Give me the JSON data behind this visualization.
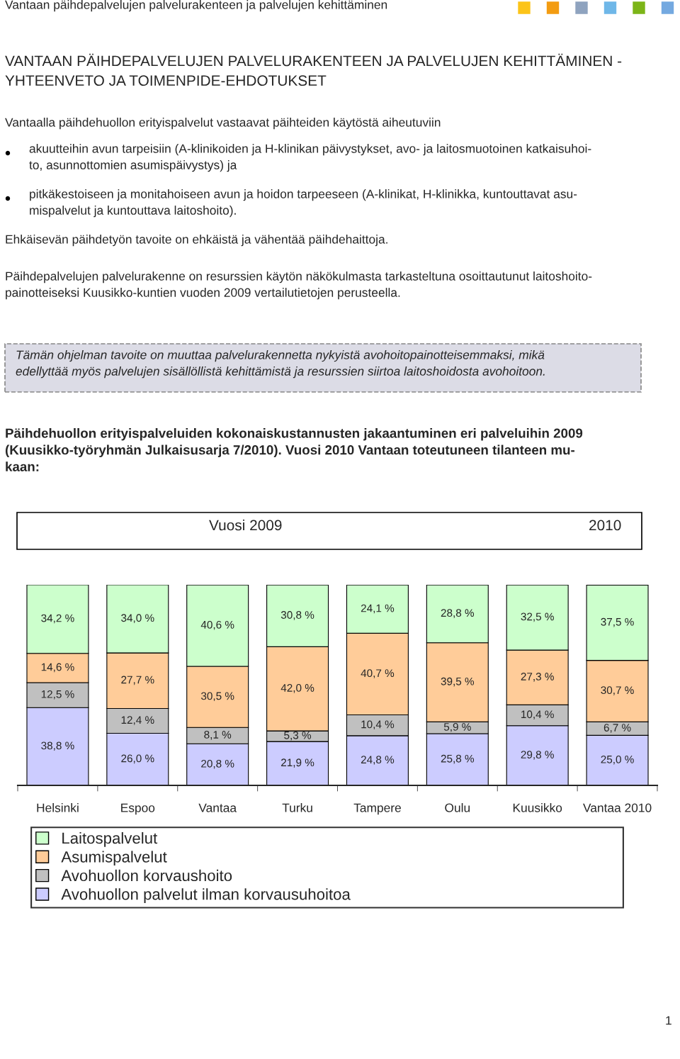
{
  "chart_data": {
    "type": "bar",
    "stacked": true,
    "title": "Päihdehuollon erityispalveluiden kokonaiskustannusten jakaantuminen eri palveluihin 2009\n(Kuusikko-työryhmän Julkaisusarja 7/2010). Vuosi 2010 Vantaan toteutuneen tilanteen mu-\nkaan:",
    "categories": [
      "Helsinki",
      "Espoo",
      "Vantaa",
      "Turku",
      "Tampere",
      "Oulu",
      "Kuusikko",
      "Vantaa 2010"
    ],
    "series": [
      {
        "name": "Avohuollon palvelut ilman korvausuhoitoa",
        "color": "#ccccff",
        "values": [
          38.8,
          26.0,
          20.8,
          21.9,
          24.8,
          25.8,
          29.8,
          25.0
        ],
        "value_labels": [
          "38,8 %",
          "26,0 %",
          "20,8 %",
          "21,9 %",
          "24,8 %",
          "25,8 %",
          "29,8 %",
          "25,0 %"
        ]
      },
      {
        "name": "Avohuollon korvaushoito",
        "color": "#c0c0c0",
        "values": [
          12.5,
          12.4,
          8.1,
          5.3,
          10.4,
          5.9,
          10.4,
          6.7
        ],
        "value_labels": [
          "12,5 %",
          "12,4 %",
          "8,1 %",
          "5,3 %",
          "10,4 %",
          "5,9 %",
          "10,4 %",
          "6,7 %"
        ]
      },
      {
        "name": "Asumispalvelut",
        "color": "#ffcc99",
        "values": [
          14.6,
          27.7,
          30.5,
          42.0,
          40.7,
          39.5,
          27.3,
          30.7
        ],
        "value_labels": [
          "14,6 %",
          "27,7 %",
          "30,5 %",
          "42,0 %",
          "40,7 %",
          "39,5 %",
          "27,3 %",
          "30,7 %"
        ]
      },
      {
        "name": "Laitospalvelut",
        "color": "#ccffcc",
        "values": [
          34.2,
          34.0,
          40.6,
          30.8,
          24.1,
          28.8,
          32.5,
          37.5
        ],
        "value_labels": [
          "34,2 %",
          "34,0 %",
          "40,6 %",
          "30,8 %",
          "24,1 %",
          "28,8 %",
          "32,5 %",
          "37,5 %"
        ]
      }
    ],
    "legend": "bottom",
    "annotations": [
      "Vantaan päihdepalvelujen palvelurakenteen ja palvelujen kehittäminen",
      "VANTAAN PÄIHDEPALVELUJEN PALVELURAKENTEEN JA PALVELUJEN KEHITTÄMINEN -\nYHTEENVETO JA TOIMENPIDE-EHDOTUKSET",
      "Vantaalla päihdehuollon erityispalvelut vastaavat päihteiden käytöstä aiheutuviin",
      "akuutteihin avun tarpeisiin (A-klinikoiden ja H-klinikan päivystykset, avo- ja laitosmuotoinen katkaisuhoi-\nto, asunnottomien asumispäivystys) ja",
      "pitkäkestoiseen ja monitahoiseen avun ja hoidon tarpeeseen (A-klinikat, H-klinikka, kuntouttavat asu-\nmispalvelut ja kuntouttava laitoshoito).",
      "Ehkäisevän päihdetyön tavoite on ehkäistä ja vähentää päihdehaittoja.",
      "Päihdepalvelujen palvelurakenne on resurssien käytön näkökulmasta tarkasteltuna osoittautunut laitoshoito-\npainotteiseksi Kuusikko-kuntien vuoden 2009 vertailutietojen perusteella.",
      "Tämän ohjelman tavoite on muuttaa palvelurakennetta nykyistä avohoitopainotteisemmaksi, mikä\nedellyttää myös palvelujen sisällöllistä kehittämistä ja resurssien siirtoa laitoshoidosta avohoitoon.",
      "Vuosi 2009",
      "2010",
      "1"
    ]
  }
}
